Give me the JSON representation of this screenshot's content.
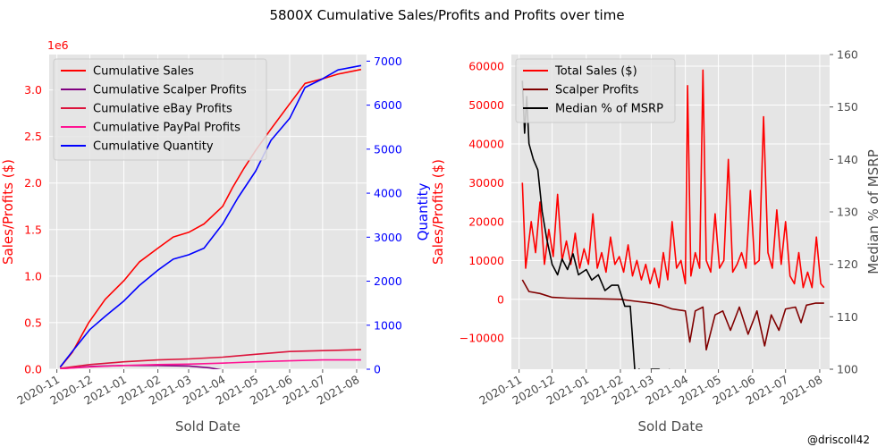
{
  "figure": {
    "title": "5800X Cumulative Sales/Profits and Profits over time",
    "credit": "@driscoll42"
  },
  "colors": {
    "plot_bg": "#e5e5e5",
    "grid": "#ffffff",
    "sales": "#ff0000",
    "scalper": "#800080",
    "ebay": "#dc143c",
    "paypal": "#ff1493",
    "quantity": "#0000ff",
    "scalper_daily": "#800000",
    "median": "#000000",
    "text_dark": "#4d4d4d"
  },
  "chart_data": [
    {
      "id": "left",
      "type": "line",
      "xlabel": "Sold Date",
      "ylabel_left": "Sales/Profits ($)",
      "ylabel_right": "Quantity",
      "y_multiplier": "1e6",
      "x_ticks": [
        "2020-11",
        "2020-12",
        "2021-01",
        "2021-02",
        "2021-03",
        "2021-04",
        "2021-05",
        "2021-06",
        "2021-07",
        "2021-08"
      ],
      "x_range": [
        "2020-10-25",
        "2021-08-10"
      ],
      "ylim_left": [
        0,
        3.38
      ],
      "yticks_left": [
        "0.0",
        "0.5",
        "1.0",
        "1.5",
        "2.0",
        "2.5",
        "3.0"
      ],
      "ylim_right": [
        0,
        7150
      ],
      "yticks_right": [
        "0",
        "1000",
        "2000",
        "3000",
        "4000",
        "5000",
        "6000",
        "7000"
      ],
      "grid": true,
      "legend_position": "upper-left",
      "series": [
        {
          "name": "Cumulative Sales",
          "axis": "left",
          "color_key": "sales",
          "x": [
            "2020-11-04",
            "2020-11-15",
            "2020-11-30",
            "2020-12-15",
            "2021-01-01",
            "2021-01-15",
            "2021-02-01",
            "2021-02-15",
            "2021-03-01",
            "2021-03-15",
            "2021-04-01",
            "2021-04-10",
            "2021-04-20",
            "2021-05-01",
            "2021-05-15",
            "2021-06-01",
            "2021-06-15",
            "2021-07-01",
            "2021-07-15",
            "2021-08-05"
          ],
          "values": [
            0.02,
            0.18,
            0.5,
            0.75,
            0.95,
            1.15,
            1.3,
            1.42,
            1.47,
            1.56,
            1.75,
            1.95,
            2.15,
            2.35,
            2.58,
            2.85,
            3.07,
            3.12,
            3.17,
            3.22
          ]
        },
        {
          "name": "Cumulative Scalper Profits",
          "axis": "left",
          "color_key": "scalper",
          "x": [
            "2020-11-04",
            "2020-12-01",
            "2021-01-01",
            "2021-02-01",
            "2021-03-01",
            "2021-03-20",
            "2021-04-01"
          ],
          "values": [
            0.005,
            0.03,
            0.04,
            0.04,
            0.035,
            0.015,
            -0.01
          ]
        },
        {
          "name": "Cumulative eBay Profits",
          "axis": "left",
          "color_key": "ebay",
          "x": [
            "2020-11-04",
            "2020-12-01",
            "2021-01-01",
            "2021-02-01",
            "2021-03-01",
            "2021-04-01",
            "2021-05-01",
            "2021-06-01",
            "2021-07-01",
            "2021-08-05"
          ],
          "values": [
            0.01,
            0.05,
            0.08,
            0.1,
            0.11,
            0.13,
            0.16,
            0.19,
            0.2,
            0.21
          ]
        },
        {
          "name": "Cumulative PayPal Profits",
          "axis": "left",
          "color_key": "paypal",
          "x": [
            "2020-11-04",
            "2020-12-01",
            "2021-01-01",
            "2021-02-01",
            "2021-03-01",
            "2021-04-01",
            "2021-05-01",
            "2021-06-01",
            "2021-07-01",
            "2021-08-05"
          ],
          "values": [
            0.005,
            0.025,
            0.04,
            0.05,
            0.055,
            0.065,
            0.08,
            0.09,
            0.1,
            0.1
          ]
        },
        {
          "name": "Cumulative Quantity",
          "axis": "right",
          "color_key": "quantity",
          "x": [
            "2020-11-04",
            "2020-11-15",
            "2020-12-01",
            "2020-12-15",
            "2021-01-01",
            "2021-01-15",
            "2021-02-01",
            "2021-02-15",
            "2021-03-01",
            "2021-03-15",
            "2021-04-01",
            "2021-04-15",
            "2021-05-01",
            "2021-05-15",
            "2021-06-01",
            "2021-06-15",
            "2021-07-01",
            "2021-07-15",
            "2021-08-05"
          ],
          "values": [
            50,
            400,
            900,
            1200,
            1550,
            1900,
            2250,
            2500,
            2600,
            2750,
            3300,
            3900,
            4500,
            5200,
            5700,
            6400,
            6600,
            6800,
            6900
          ]
        }
      ]
    },
    {
      "id": "right",
      "type": "line",
      "xlabel": "Sold Date",
      "ylabel_left": "Sales/Profits ($)",
      "ylabel_right": "Median % of MSRP",
      "x_ticks": [
        "2020-11",
        "2020-12",
        "2021-01",
        "2021-02",
        "2021-03",
        "2021-04",
        "2021-05",
        "2021-06",
        "2021-07",
        "2021-08"
      ],
      "x_range": [
        "2020-10-25",
        "2021-08-10"
      ],
      "ylim_left": [
        -18000,
        63000
      ],
      "yticks_left": [
        "−10000",
        "0",
        "10000",
        "20000",
        "30000",
        "40000",
        "50000",
        "60000"
      ],
      "ylim_right": [
        100,
        160
      ],
      "yticks_right": [
        "100",
        "110",
        "120",
        "130",
        "140",
        "150",
        "160"
      ],
      "grid": true,
      "legend_position": "upper-left",
      "series": [
        {
          "name": "Total Sales ($)",
          "axis": "left",
          "color_key": "sales",
          "x": [
            "2020-11-04",
            "2020-11-07",
            "2020-11-12",
            "2020-11-16",
            "2020-11-20",
            "2020-11-24",
            "2020-11-28",
            "2020-12-02",
            "2020-12-06",
            "2020-12-10",
            "2020-12-14",
            "2020-12-18",
            "2020-12-22",
            "2020-12-26",
            "2020-12-30",
            "2021-01-03",
            "2021-01-07",
            "2021-01-11",
            "2021-01-15",
            "2021-01-19",
            "2021-01-23",
            "2021-01-27",
            "2021-01-31",
            "2021-02-04",
            "2021-02-08",
            "2021-02-12",
            "2021-02-16",
            "2021-02-20",
            "2021-02-24",
            "2021-02-28",
            "2021-03-04",
            "2021-03-08",
            "2021-03-12",
            "2021-03-16",
            "2021-03-20",
            "2021-03-24",
            "2021-03-28",
            "2021-04-01",
            "2021-04-03",
            "2021-04-06",
            "2021-04-10",
            "2021-04-14",
            "2021-04-17",
            "2021-04-20",
            "2021-04-24",
            "2021-04-28",
            "2021-05-02",
            "2021-05-06",
            "2021-05-10",
            "2021-05-14",
            "2021-05-18",
            "2021-05-22",
            "2021-05-26",
            "2021-05-30",
            "2021-06-03",
            "2021-06-07",
            "2021-06-11",
            "2021-06-15",
            "2021-06-19",
            "2021-06-23",
            "2021-06-27",
            "2021-07-01",
            "2021-07-05",
            "2021-07-09",
            "2021-07-13",
            "2021-07-17",
            "2021-07-21",
            "2021-07-25",
            "2021-07-29",
            "2021-08-02",
            "2021-08-05"
          ],
          "values": [
            30000,
            8000,
            20000,
            12000,
            25000,
            9000,
            18000,
            11000,
            27000,
            10000,
            15000,
            9000,
            17000,
            8000,
            13000,
            9000,
            22000,
            8000,
            12000,
            7000,
            16000,
            9000,
            11000,
            7000,
            14000,
            6000,
            10000,
            5000,
            9000,
            4000,
            8000,
            3000,
            12000,
            5000,
            20000,
            8000,
            10000,
            4000,
            55000,
            6000,
            12000,
            8000,
            59000,
            10000,
            7000,
            22000,
            8000,
            10000,
            36000,
            7000,
            9000,
            12000,
            8000,
            28000,
            9000,
            10000,
            47000,
            12000,
            8000,
            23000,
            9000,
            20000,
            6000,
            4000,
            12000,
            3000,
            7000,
            3000,
            16000,
            4000,
            3000
          ]
        },
        {
          "name": "Scalper Profits",
          "axis": "left",
          "color_key": "scalper_daily",
          "x": [
            "2020-11-04",
            "2020-11-10",
            "2020-11-20",
            "2020-12-01",
            "2020-12-15",
            "2021-01-01",
            "2021-01-15",
            "2021-02-01",
            "2021-02-15",
            "2021-03-01",
            "2021-03-10",
            "2021-03-20",
            "2021-04-01",
            "2021-04-05",
            "2021-04-10",
            "2021-04-17",
            "2021-04-20",
            "2021-04-28",
            "2021-05-05",
            "2021-05-12",
            "2021-05-20",
            "2021-05-28",
            "2021-06-05",
            "2021-06-12",
            "2021-06-18",
            "2021-06-25",
            "2021-07-01",
            "2021-07-10",
            "2021-07-15",
            "2021-07-20",
            "2021-07-28",
            "2021-08-05"
          ],
          "values": [
            5000,
            2000,
            1500,
            500,
            300,
            200,
            100,
            0,
            -500,
            -1000,
            -1500,
            -2500,
            -3000,
            -11000,
            -3000,
            -2000,
            -13000,
            -4000,
            -3000,
            -8000,
            -2000,
            -9000,
            -3000,
            -12000,
            -4000,
            -8000,
            -2500,
            -2000,
            -6000,
            -1500,
            -1000,
            -1000
          ]
        },
        {
          "name": "Median % of MSRP",
          "axis": "right",
          "color_key": "median",
          "x": [
            "2020-11-04",
            "2020-11-06",
            "2020-11-08",
            "2020-11-10",
            "2020-11-14",
            "2020-11-18",
            "2020-11-22",
            "2020-11-26",
            "2020-12-01",
            "2020-12-06",
            "2020-12-10",
            "2020-12-15",
            "2020-12-20",
            "2020-12-25",
            "2021-01-01",
            "2021-01-06",
            "2021-01-12",
            "2021-01-18",
            "2021-01-24",
            "2021-01-30",
            "2021-02-05",
            "2021-02-10",
            "2021-02-14",
            "2021-02-16",
            "2021-02-18",
            "2021-02-20",
            "2021-03-01",
            "2021-03-08",
            "2021-03-14",
            "2021-03-18"
          ],
          "values": [
            155,
            145,
            152,
            143,
            140,
            138,
            130,
            125,
            120,
            118,
            121,
            119,
            122,
            118,
            119,
            117,
            118,
            115,
            116,
            116,
            112,
            112,
            100,
            98,
            100,
            96,
            100,
            100,
            99,
            100
          ]
        }
      ]
    }
  ]
}
